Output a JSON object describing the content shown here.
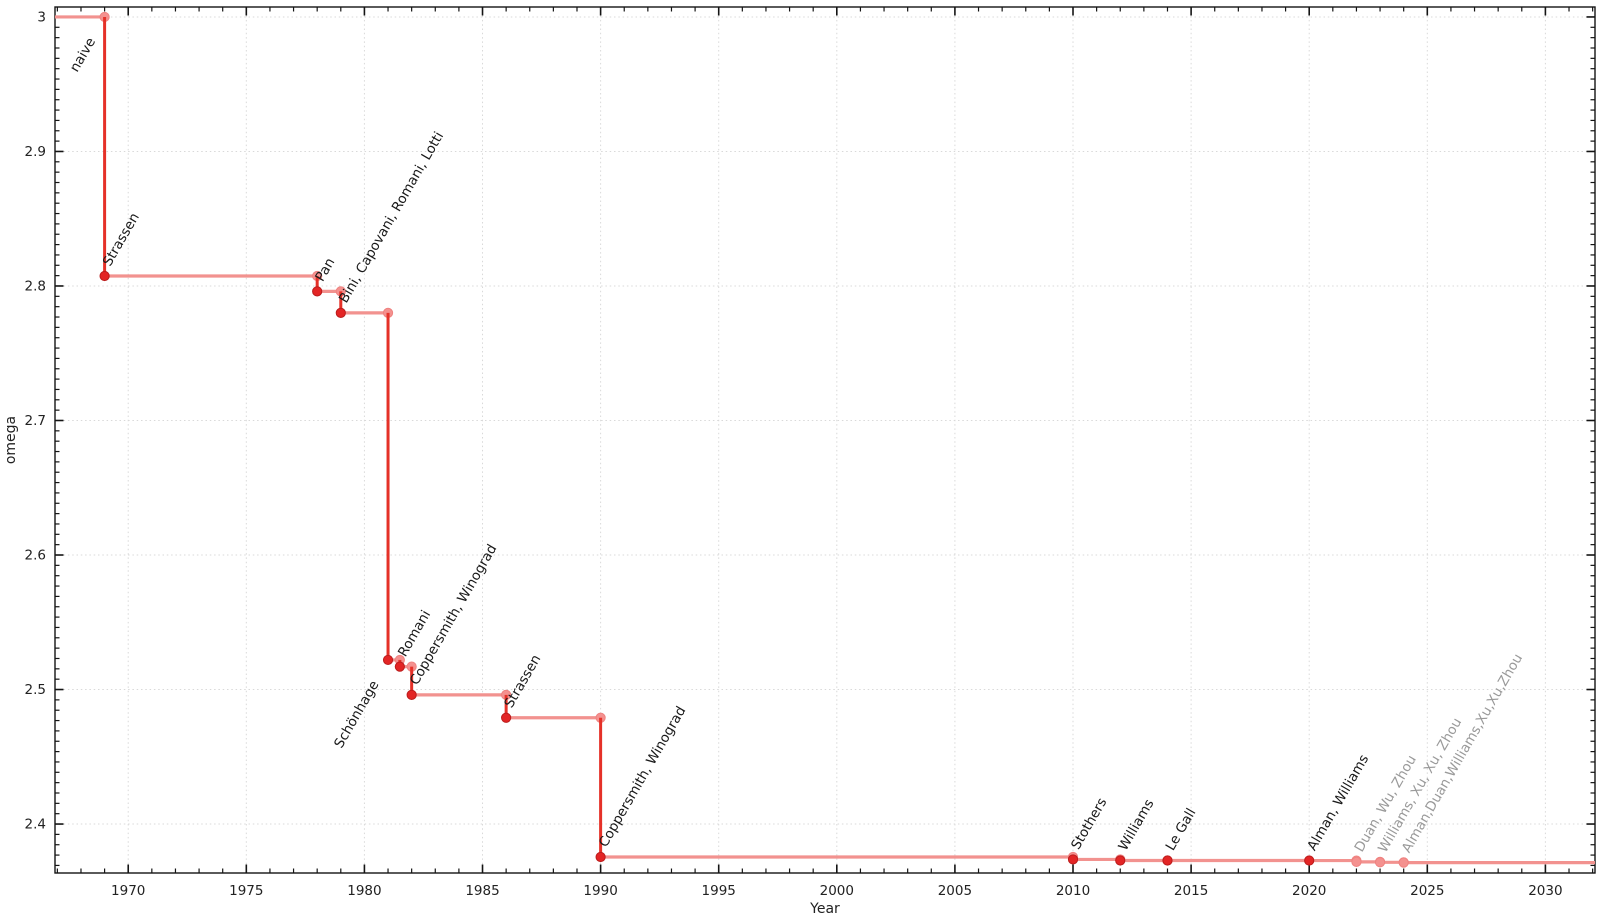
{
  "chart_data": {
    "type": "line",
    "subtype": "step-after",
    "title": "",
    "xlabel": "Year",
    "ylabel": "omega",
    "xlim": [
      1966.9,
      2032.1
    ],
    "ylim": [
      2.3636,
      3.0074
    ],
    "xticks": [
      1970,
      1975,
      1980,
      1985,
      1990,
      1995,
      2000,
      2005,
      2010,
      2015,
      2020,
      2025,
      2030
    ],
    "yticks": [
      2.4,
      2.5,
      2.6,
      2.7,
      2.8,
      2.9,
      3
    ],
    "x_minor_step": 1,
    "y_minor_divisions": 13,
    "grid": "dotted-major",
    "legend": "none",
    "line_extends_to_xmax": true,
    "start_value": {
      "label": "naive",
      "omega": 3.0,
      "label_anchor": "end"
    },
    "events": [
      {
        "year": 1969,
        "omega": 2.8074,
        "label": "Strassen",
        "status": "established"
      },
      {
        "year": 1978,
        "omega": 2.796,
        "label": "Pan",
        "status": "established"
      },
      {
        "year": 1979,
        "omega": 2.78,
        "label": "Bini, Capovani, Romani, Lotti",
        "status": "established"
      },
      {
        "year": 1981,
        "omega": 2.522,
        "label": "Schönhage",
        "status": "established",
        "label_anchor": "end"
      },
      {
        "year": 1981.5,
        "omega": 2.517,
        "label": "Romani",
        "status": "established"
      },
      {
        "year": 1982,
        "omega": 2.496,
        "label": "Coppersmith, Winograd",
        "status": "established"
      },
      {
        "year": 1986,
        "omega": 2.479,
        "label": "Strassen",
        "status": "established"
      },
      {
        "year": 1990,
        "omega": 2.3755,
        "label": "Coppersmith, Winograd",
        "status": "established"
      },
      {
        "year": 2010,
        "omega": 2.3737,
        "label": "Stothers",
        "status": "established"
      },
      {
        "year": 2012,
        "omega": 2.3729,
        "label": "Williams",
        "status": "established"
      },
      {
        "year": 2014,
        "omega": 2.37287,
        "label": "Le Gall",
        "status": "established"
      },
      {
        "year": 2020,
        "omega": 2.37286,
        "label": "Alman, Williams",
        "status": "established"
      },
      {
        "year": 2022,
        "omega": 2.37188,
        "label": "Duan, Wu, Zhou",
        "status": "recent"
      },
      {
        "year": 2023,
        "omega": 2.37155,
        "label": "Williams, Xu, Xu, Zhou",
        "status": "recent"
      },
      {
        "year": 2024,
        "omega": 2.37134,
        "label": "Alman,Duan,Williams,Xu,Xu,Zhou",
        "status": "recent"
      }
    ]
  },
  "colors": {
    "plateau_line": "#f2928f",
    "drop_line": "#e53128",
    "marker_fill": "#e32525",
    "marker_stroke": "#bb1c1c",
    "plateau_marker_fill": "#f4918f",
    "plateau_marker_stroke": "#ef8280",
    "recent_marker_fill": "#f4918f",
    "recent_marker_stroke": "#ef8280",
    "label_text": "#1a1a1a",
    "recent_label_text": "#9a9a9a",
    "grid": "#d9d9d9",
    "axis_frame": "#141414",
    "tick_mark": "#141414",
    "tick_label": "#222222",
    "axis_title": "#222222",
    "background": "#ffffff"
  },
  "layout_text": {
    "x_axis_title": "Year",
    "y_axis_title": "omega"
  }
}
